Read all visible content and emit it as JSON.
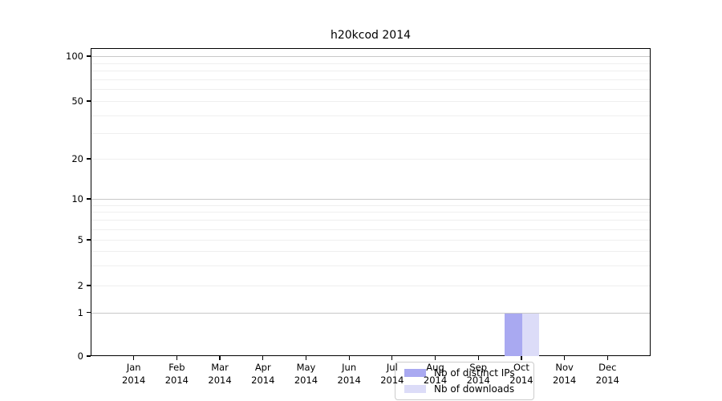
{
  "chart_data": {
    "type": "bar",
    "title": "h20kcod 2014",
    "x": {
      "categories": [
        "Jan",
        "Feb",
        "Mar",
        "Apr",
        "May",
        "Jun",
        "Jul",
        "Aug",
        "Sep",
        "Oct",
        "Nov",
        "Dec"
      ],
      "year_label": "2014"
    },
    "y": {
      "scale": "log-with-zero-baseline",
      "labeled_ticks": [
        100,
        50,
        20,
        10,
        5,
        2,
        1,
        0
      ],
      "decade_grid_ticks": [
        100,
        10,
        1
      ],
      "minor_grid_ticks": [
        90,
        80,
        70,
        60,
        50,
        40,
        30,
        20,
        9,
        8,
        7,
        6,
        5,
        4,
        3,
        2
      ],
      "ylim": [
        0,
        110
      ]
    },
    "series": [
      {
        "name": "Nb of distinct IPs",
        "color": "#a9a9f1",
        "values": [
          0,
          0,
          0,
          0,
          0,
          0,
          0,
          0,
          0,
          1,
          0,
          0
        ]
      },
      {
        "name": "Nb of downloads",
        "color": "#dcdcf8",
        "values": [
          0,
          0,
          0,
          0,
          0,
          0,
          0,
          0,
          0,
          1,
          0,
          0
        ]
      }
    ],
    "legend": {
      "position": "inside-bottom-center",
      "entries": [
        "Nb of distinct IPs",
        "Nb of downloads"
      ]
    },
    "grid": {
      "major_color": "#c8c8c8",
      "minor_color": "#efefef"
    },
    "colors": {
      "axis": "#000000",
      "background": "#ffffff",
      "legend_border": "#cccccc"
    }
  }
}
